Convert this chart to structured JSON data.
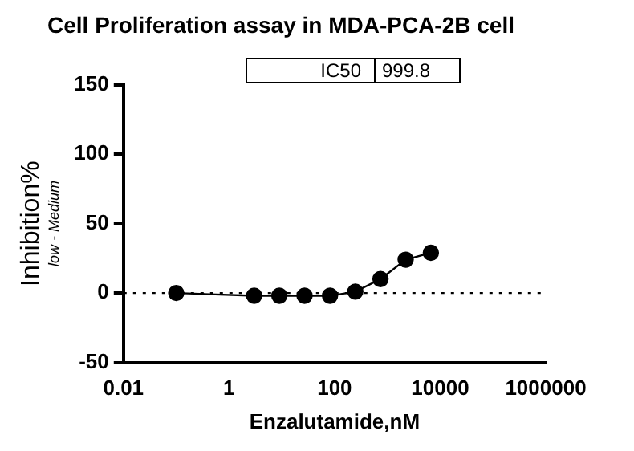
{
  "chart_data": {
    "type": "line",
    "title": "Cell Proliferation assay in MDA-PCA-2B cell",
    "xlabel": "Enzalutamide,nM",
    "ylabel": "Inhibition%",
    "annotations": [
      "IC50",
      "999.8",
      "low - Medium"
    ],
    "x": [
      0.1,
      3,
      9,
      27,
      82,
      247,
      741,
      2222,
      6667
    ],
    "series": [
      {
        "color": "#000000",
        "values": [
          0,
          -2,
          -2,
          -2,
          -2,
          1,
          10,
          24,
          29
        ]
      }
    ],
    "log": "x",
    "xlim": [
      0.01,
      1000000
    ],
    "xticks": [
      0.01,
      1,
      100,
      10000,
      1000000
    ],
    "ylim": [
      -50,
      150
    ],
    "yticks": [
      -50,
      0,
      50,
      100,
      150
    ],
    "ref_lines": [
      {
        "axis": "y",
        "value": 0,
        "color": "#000000",
        "line_style": "dotted"
      }
    ],
    "grid": false,
    "legend": false,
    "marker": "circle",
    "line_style": "solid"
  }
}
